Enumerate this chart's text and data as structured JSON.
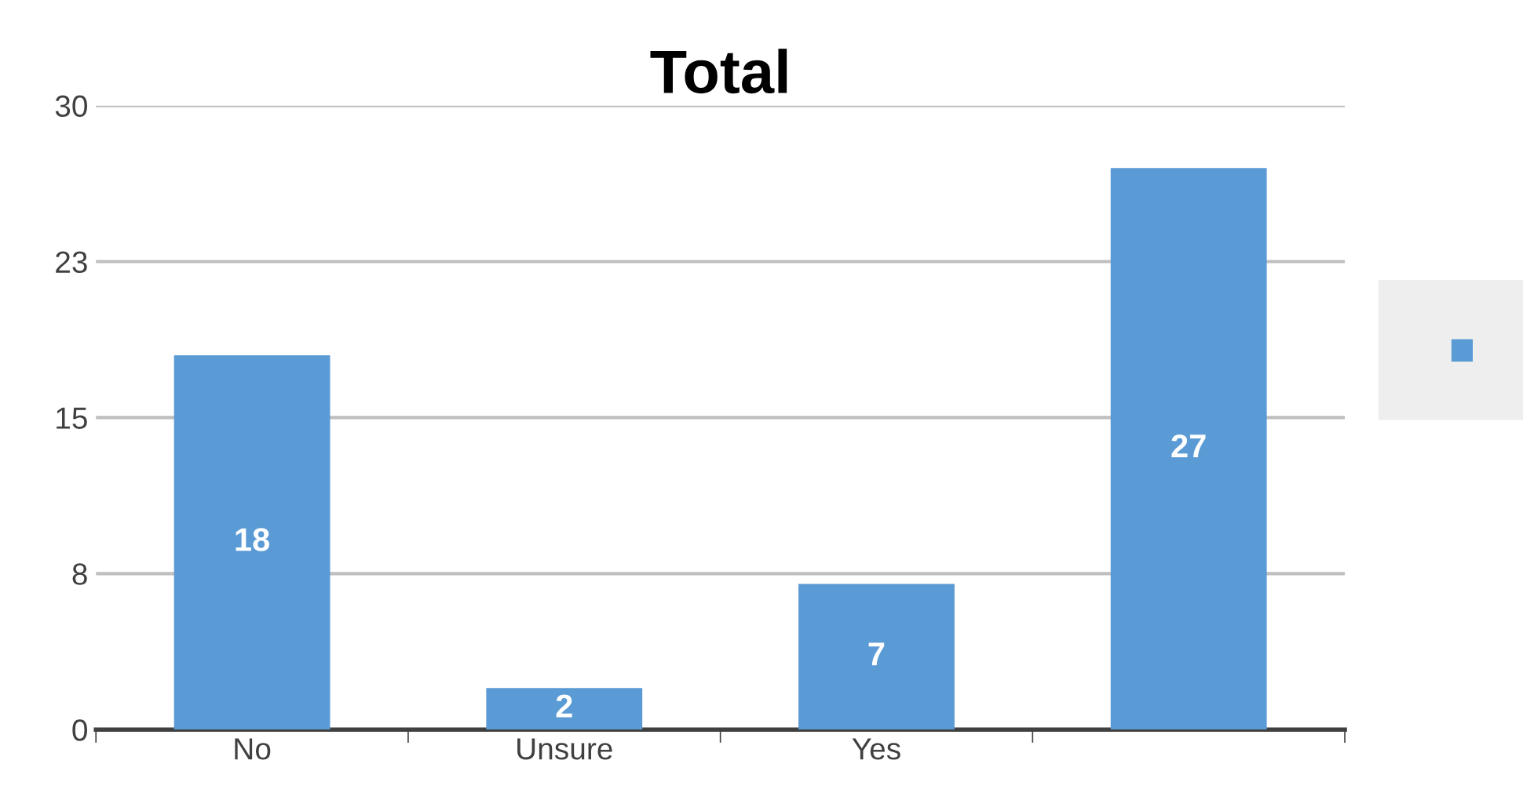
{
  "chart_data": {
    "type": "bar",
    "title": "Total",
    "categories": [
      "No",
      "Unsure",
      "Yes",
      null
    ],
    "series": [
      {
        "color": "#5b9bd5",
        "values": [
          18,
          2,
          7,
          27
        ]
      }
    ],
    "ylim": [
      0,
      30
    ],
    "yticks": [
      0,
      {
        "value": 7.5,
        "label": "8"
      },
      15,
      {
        "value": 22.5,
        "label": "23"
      },
      30
    ],
    "grid": "y",
    "data_labels": true
  }
}
